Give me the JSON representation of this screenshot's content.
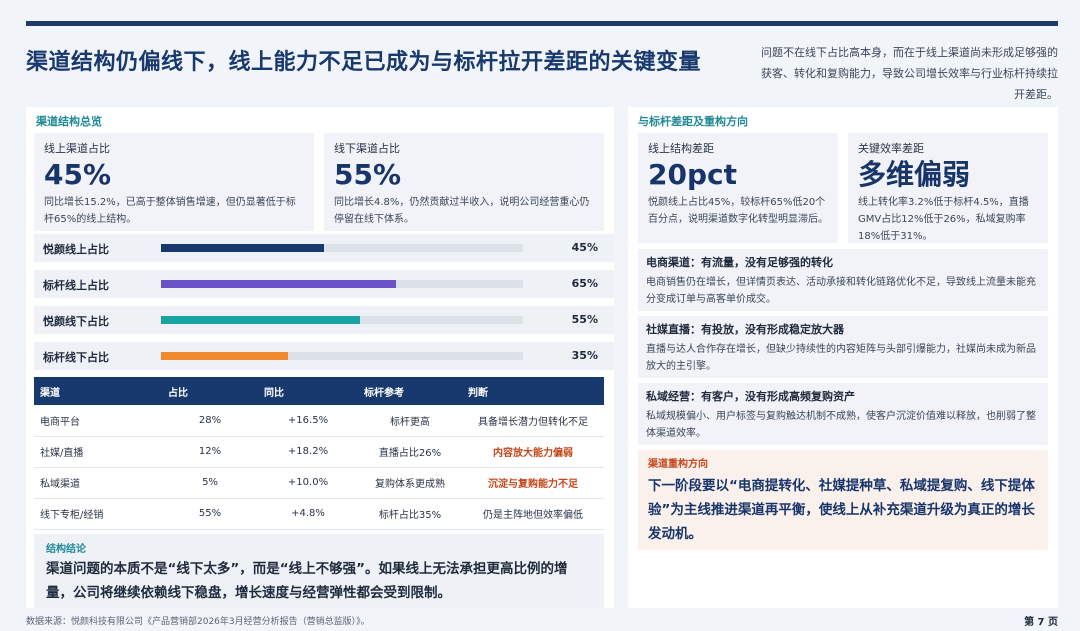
{
  "header": {
    "title": "渠道结构仍偏线下，线上能力不足已成为与标杆拉开差距的关键变量",
    "note": "问题不在线下占比高本身，而在于线上渠道尚未形成足够强的获客、转化和复购能力，导致公司增长效率与行业标杆持续拉开差距。"
  },
  "left": {
    "section_title": "渠道结构总览",
    "cards": [
      {
        "label": "线上渠道占比",
        "value": "45%",
        "desc": "同比增长15.2%，已高于整体销售增速，但仍显著低于标杆65%的线上结构。"
      },
      {
        "label": "线下渠道占比",
        "value": "55%",
        "desc": "同比增长4.8%，仍然贡献过半收入，说明公司经营重心仍停留在线下体系。"
      }
    ],
    "bars": [
      {
        "label": "悦颜线上占比",
        "pct_text": "45%",
        "value": 45,
        "color": "#18396e"
      },
      {
        "label": "标杆线上占比",
        "pct_text": "65%",
        "value": 65,
        "color": "#6b52c8"
      },
      {
        "label": "悦颜线下占比",
        "pct_text": "55%",
        "value": 55,
        "color": "#1aa3a3"
      },
      {
        "label": "标杆线下占比",
        "pct_text": "35%",
        "value": 35,
        "color": "#f08a2c"
      }
    ],
    "table": {
      "headers": [
        "渠道",
        "占比",
        "同比",
        "标杆参考",
        "判断"
      ],
      "rows": [
        [
          "电商平台",
          "28%",
          "+16.5%",
          "标杆更高",
          "具备增长潜力但转化不足"
        ],
        [
          "社媒/直播",
          "12%",
          "+18.2%",
          "直播占比26%",
          "内容放大能力偏弱"
        ],
        [
          "私域渠道",
          "5%",
          "+10.0%",
          "复购体系更成熟",
          "沉淀与复购能力不足"
        ],
        [
          "线下专柜/经销",
          "55%",
          "+4.8%",
          "标杆占比35%",
          "仍是主阵地但效率偏低"
        ]
      ]
    },
    "conclusion": {
      "title": "结构结论",
      "text": "渠道问题的本质不是“线下太多”，而是“线上不够强”。如果线上无法承担更高比例的增量，公司将继续依赖线下稳盘，增长速度与经营弹性都会受到限制。"
    }
  },
  "right": {
    "section_title": "与标杆差距及重构方向",
    "cards": [
      {
        "label": "线上结构差距",
        "value": "20pct",
        "desc": "悦颜线上占比45%，较标杆65%低20个百分点，说明渠道数字化转型明显滞后。"
      },
      {
        "label": "关键效率差距",
        "value": "多维偏弱",
        "desc": "线上转化率3.2%低于标杆4.5%，直播GMV占比12%低于26%，私域复购率18%低于31%。"
      }
    ],
    "issues": [
      {
        "title": "电商渠道：有流量，没有足够强的转化",
        "desc": "电商销售仍在增长，但详情页表达、活动承接和转化链路优化不足，导致线上流量未能充分变成订单与高客单价成交。"
      },
      {
        "title": "社媒直播：有投放，没有形成稳定放大器",
        "desc": "直播与达人合作存在增长，但缺少持续性的内容矩阵与头部引爆能力，社媒尚未成为新品放大的主引擎。"
      },
      {
        "title": "私域经营：有客户，没有形成高频复购资产",
        "desc": "私域规模偏小、用户标签与复购触达机制不成熟，使客户沉淀价值难以释放，也削弱了整体渠道效率。"
      }
    ],
    "direction": {
      "title": "渠道重构方向",
      "text": "下一阶段要以“电商提转化、社媒提种草、私域提复购、线下提体验”为主线推进渠道再平衡，使线上从补充渠道升级为真正的增长发动机。"
    }
  },
  "footer": {
    "source": "数据来源：悦颜科技有限公司《产品营销部2026年3月经营分析报告（营销总监版）》。",
    "page": "第 7 页"
  }
}
